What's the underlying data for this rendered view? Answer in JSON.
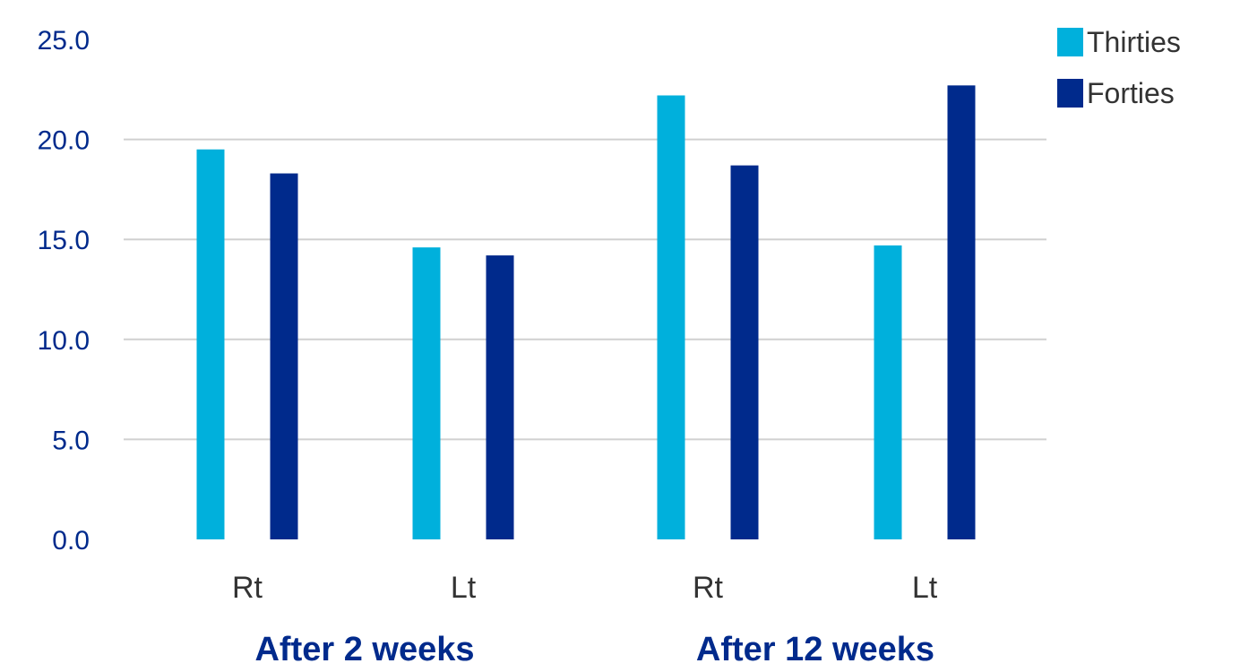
{
  "chart_data": {
    "type": "bar",
    "groups": [
      {
        "label": "After 2 weeks",
        "categories": [
          "Rt",
          "Lt"
        ]
      },
      {
        "label": "After 12 weeks",
        "categories": [
          "Rt",
          "Lt"
        ]
      }
    ],
    "categories": [
      "Rt",
      "Lt",
      "Rt",
      "Lt"
    ],
    "series": [
      {
        "name": "Thirties",
        "color": "#00b0dc",
        "values": [
          19.5,
          14.6,
          22.2,
          14.7
        ]
      },
      {
        "name": "Forties",
        "color": "#002a8c",
        "values": [
          18.3,
          14.2,
          18.7,
          22.7
        ]
      }
    ],
    "ylim": [
      0,
      25
    ],
    "yticks": [
      "0.0",
      "5.0",
      "10.0",
      "15.0",
      "20.0",
      "25.0"
    ],
    "grid": true,
    "legend_position": "top-right",
    "colors": {
      "grid": "#d0d0d0",
      "axis_text": "#002a8c",
      "category_text": "#333333"
    }
  }
}
